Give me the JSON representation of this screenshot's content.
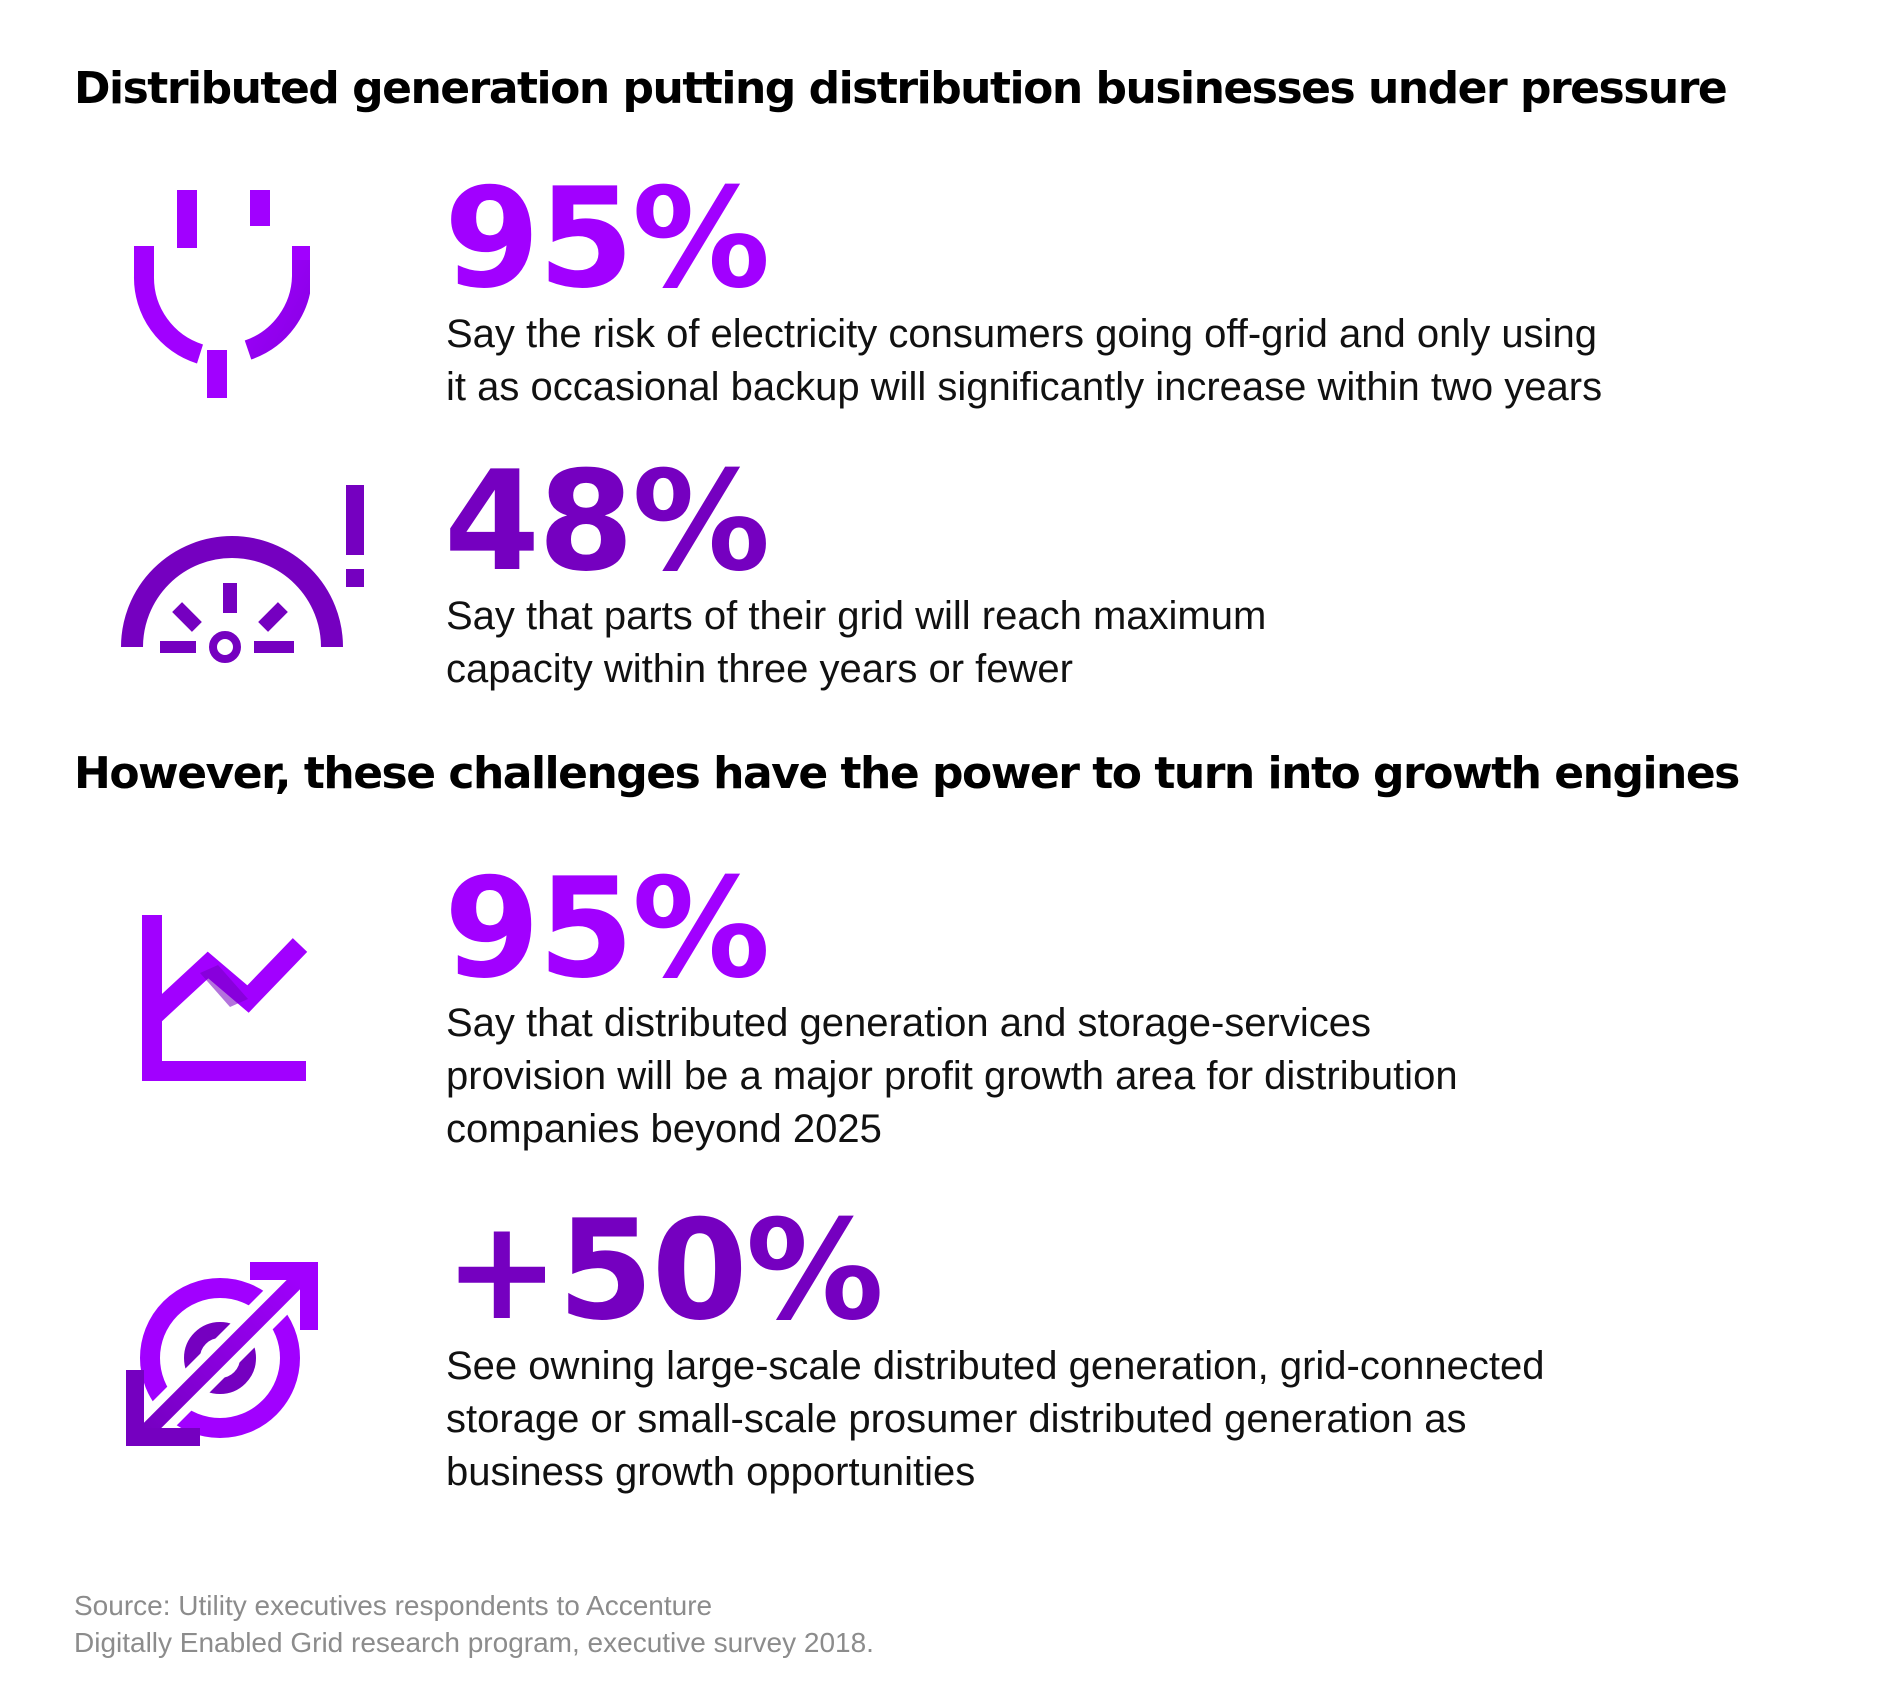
{
  "headings": {
    "pressure": "Distributed generation putting distribution businesses under pressure",
    "opportunity": "However, these challenges have the power to turn into growth engines"
  },
  "stats": [
    {
      "value": "95%",
      "description_lines": [
        "Say the risk of electricity consumers going off-grid and only using",
        "it as occasional backup will significantly increase within two years"
      ],
      "icon": "plug-icon",
      "color": "#A100FF"
    },
    {
      "value": "48%",
      "description_lines": [
        "Say that parts of their grid will reach maximum",
        "capacity within three years or fewer"
      ],
      "icon": "gauge-alert-icon",
      "color": "#7500C0"
    },
    {
      "value": "95%",
      "description_lines": [
        "Say that distributed generation and storage-services",
        "provision will be a major profit growth area for distribution",
        "companies beyond 2025"
      ],
      "icon": "growth-chart-icon",
      "color": "#A100FF"
    },
    {
      "value": "+50%",
      "description_lines": [
        "See owning large-scale distributed generation, grid-connected",
        "storage or small-scale prosumer distributed generation as",
        "business growth opportunities"
      ],
      "icon": "expand-arrows-icon",
      "color": "#7500C0"
    }
  ],
  "source": {
    "lines": [
      "Source: Utility executives respondents to Accenture",
      "Digitally Enabled Grid research program, executive survey 2018."
    ]
  },
  "colors": {
    "bright_purple": "#A100FF",
    "dark_purple": "#7500C0",
    "source_gray": "#8C8C8C"
  }
}
